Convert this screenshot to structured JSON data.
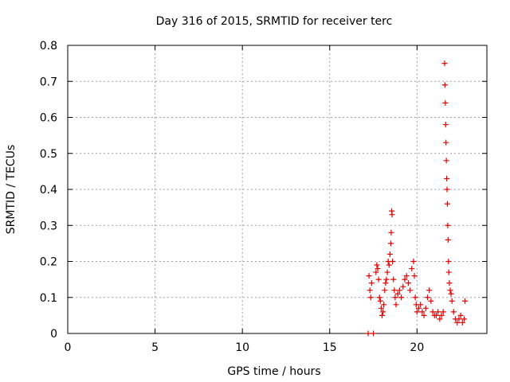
{
  "chart_data": {
    "type": "scatter",
    "title": "Day 316 of 2015, SRMTID for receiver terc",
    "xlabel": "GPS time / hours",
    "ylabel": "SRMTID / TECUs",
    "xlim": [
      0,
      24
    ],
    "ylim": [
      0,
      0.8
    ],
    "xticks": [
      0,
      5,
      10,
      15,
      20
    ],
    "yticks": [
      0,
      0.1,
      0.2,
      0.3,
      0.4,
      0.5,
      0.6,
      0.7,
      0.8
    ],
    "xtick_labels": [
      "0",
      "5",
      "10",
      "15",
      "20"
    ],
    "ytick_labels": [
      "0",
      "0.1",
      "0.2",
      "0.3",
      "0.4",
      "0.5",
      "0.6",
      "0.7",
      "0.8"
    ],
    "grid": true,
    "marker": "+",
    "color": "#e00000",
    "series": [
      {
        "name": "SRMTID",
        "points": [
          [
            17.2,
            0.0
          ],
          [
            17.5,
            0.0
          ],
          [
            17.25,
            0.16
          ],
          [
            17.3,
            0.12
          ],
          [
            17.35,
            0.1
          ],
          [
            17.4,
            0.14
          ],
          [
            17.65,
            0.17
          ],
          [
            17.7,
            0.19
          ],
          [
            17.75,
            0.18
          ],
          [
            17.8,
            0.15
          ],
          [
            17.85,
            0.1
          ],
          [
            17.9,
            0.09
          ],
          [
            17.95,
            0.07
          ],
          [
            18.0,
            0.05
          ],
          [
            18.05,
            0.06
          ],
          [
            18.1,
            0.08
          ],
          [
            18.15,
            0.12
          ],
          [
            18.2,
            0.14
          ],
          [
            18.25,
            0.15
          ],
          [
            18.3,
            0.17
          ],
          [
            18.35,
            0.2
          ],
          [
            18.4,
            0.19
          ],
          [
            18.45,
            0.22
          ],
          [
            18.5,
            0.25
          ],
          [
            18.52,
            0.28
          ],
          [
            18.55,
            0.34
          ],
          [
            18.57,
            0.33
          ],
          [
            18.6,
            0.2
          ],
          [
            18.65,
            0.15
          ],
          [
            18.7,
            0.12
          ],
          [
            18.75,
            0.1
          ],
          [
            18.8,
            0.08
          ],
          [
            18.9,
            0.11
          ],
          [
            19.0,
            0.12
          ],
          [
            19.1,
            0.1
          ],
          [
            19.2,
            0.13
          ],
          [
            19.3,
            0.15
          ],
          [
            19.4,
            0.16
          ],
          [
            19.5,
            0.14
          ],
          [
            19.6,
            0.12
          ],
          [
            19.7,
            0.18
          ],
          [
            19.8,
            0.2
          ],
          [
            19.85,
            0.16
          ],
          [
            19.9,
            0.1
          ],
          [
            19.95,
            0.08
          ],
          [
            20.0,
            0.06
          ],
          [
            20.1,
            0.07
          ],
          [
            20.2,
            0.08
          ],
          [
            20.3,
            0.06
          ],
          [
            20.4,
            0.05
          ],
          [
            20.5,
            0.07
          ],
          [
            20.6,
            0.1
          ],
          [
            20.7,
            0.12
          ],
          [
            20.8,
            0.09
          ],
          [
            20.9,
            0.06
          ],
          [
            21.0,
            0.05
          ],
          [
            21.1,
            0.05
          ],
          [
            21.2,
            0.06
          ],
          [
            21.3,
            0.04
          ],
          [
            21.4,
            0.05
          ],
          [
            21.5,
            0.06
          ],
          [
            21.58,
            0.75
          ],
          [
            21.6,
            0.69
          ],
          [
            21.62,
            0.64
          ],
          [
            21.64,
            0.58
          ],
          [
            21.66,
            0.53
          ],
          [
            21.68,
            0.48
          ],
          [
            21.7,
            0.43
          ],
          [
            21.72,
            0.4
          ],
          [
            21.74,
            0.36
          ],
          [
            21.76,
            0.3
          ],
          [
            21.78,
            0.26
          ],
          [
            21.8,
            0.2
          ],
          [
            21.82,
            0.17
          ],
          [
            21.85,
            0.14
          ],
          [
            21.9,
            0.12
          ],
          [
            21.95,
            0.11
          ],
          [
            22.0,
            0.09
          ],
          [
            22.1,
            0.06
          ],
          [
            22.2,
            0.04
          ],
          [
            22.3,
            0.03
          ],
          [
            22.4,
            0.04
          ],
          [
            22.5,
            0.05
          ],
          [
            22.6,
            0.03
          ],
          [
            22.7,
            0.04
          ],
          [
            22.75,
            0.09
          ]
        ]
      }
    ]
  }
}
